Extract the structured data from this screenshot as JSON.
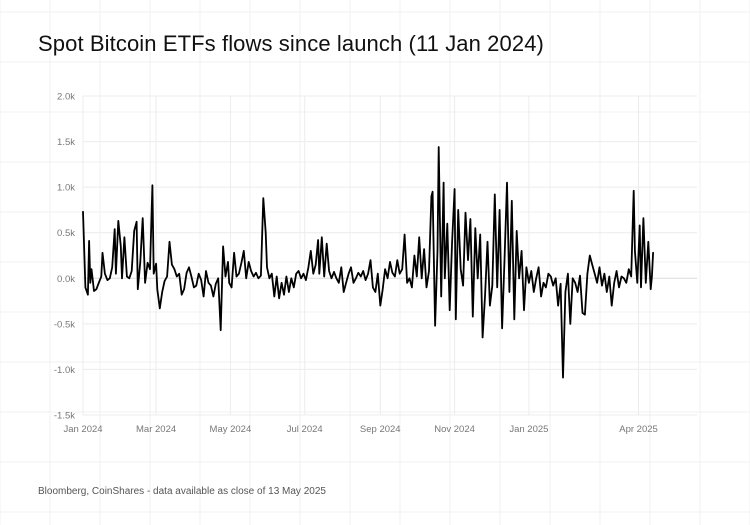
{
  "title": "Spot Bitcoin ETFs flows since launch (11 Jan 2024)",
  "source": "Bloomberg, CoinShares - data available as close of 13 May 2025",
  "chart_data": {
    "type": "line",
    "title": "Spot Bitcoin ETFs flows since launch (11 Jan 2024)",
    "xlabel": "",
    "ylabel": "",
    "xlim": [
      "2024-01-01",
      "2025-05-19"
    ],
    "ylim": [
      -1.5,
      2.0
    ],
    "y_unit": "k",
    "grid": true,
    "legend": "none",
    "line_color": "#000000",
    "y_ticks": [
      {
        "value": 2.0,
        "label": "2.0k"
      },
      {
        "value": 1.5,
        "label": "1.5k"
      },
      {
        "value": 1.0,
        "label": "1.0k"
      },
      {
        "value": 0.5,
        "label": "0.5k"
      },
      {
        "value": 0.0,
        "label": "0.0k"
      },
      {
        "value": -0.5,
        "label": "-0.5k"
      },
      {
        "value": -1.0,
        "label": "-1.0k"
      },
      {
        "value": -1.5,
        "label": "-1.5k"
      }
    ],
    "x_ticks": [
      {
        "date": "2024-01-01",
        "label": "Jan 2024"
      },
      {
        "date": "2024-03-01",
        "label": "Mar 2024"
      },
      {
        "date": "2024-05-01",
        "label": "May 2024"
      },
      {
        "date": "2024-07-01",
        "label": "Jul 2024"
      },
      {
        "date": "2024-09-01",
        "label": "Sep 2024"
      },
      {
        "date": "2024-11-01",
        "label": "Nov 2024"
      },
      {
        "date": "2025-01-01",
        "label": "Jan 2025"
      },
      {
        "date": "2025-04-01",
        "label": "Apr 2025"
      }
    ],
    "series": [
      {
        "values": [
          [
            "2024-01-01",
            0.73
          ],
          [
            "2024-01-03",
            -0.1
          ],
          [
            "2024-01-05",
            -0.18
          ],
          [
            "2024-01-06",
            0.41
          ],
          [
            "2024-01-07",
            -0.05
          ],
          [
            "2024-01-08",
            0.1
          ],
          [
            "2024-01-10",
            -0.14
          ],
          [
            "2024-01-12",
            -0.12
          ],
          [
            "2024-01-14",
            -0.05
          ],
          [
            "2024-01-16",
            0.02
          ],
          [
            "2024-01-17",
            0.28
          ],
          [
            "2024-01-19",
            0.05
          ],
          [
            "2024-01-21",
            -0.02
          ],
          [
            "2024-01-23",
            0.0
          ],
          [
            "2024-01-25",
            0.12
          ],
          [
            "2024-01-27",
            0.54
          ],
          [
            "2024-01-28",
            0.05
          ],
          [
            "2024-01-30",
            0.63
          ],
          [
            "2024-02-01",
            0.35
          ],
          [
            "2024-02-02",
            0.0
          ],
          [
            "2024-02-04",
            0.45
          ],
          [
            "2024-02-06",
            0.02
          ],
          [
            "2024-02-08",
            0.0
          ],
          [
            "2024-02-10",
            0.08
          ],
          [
            "2024-02-12",
            0.52
          ],
          [
            "2024-02-14",
            0.62
          ],
          [
            "2024-02-15",
            -0.12
          ],
          [
            "2024-02-17",
            0.18
          ],
          [
            "2024-02-19",
            0.66
          ],
          [
            "2024-02-21",
            -0.05
          ],
          [
            "2024-02-23",
            0.17
          ],
          [
            "2024-02-25",
            0.1
          ],
          [
            "2024-02-27",
            1.02
          ],
          [
            "2024-02-28",
            0.05
          ],
          [
            "2024-03-01",
            0.16
          ],
          [
            "2024-03-02",
            -0.12
          ],
          [
            "2024-03-04",
            -0.33
          ],
          [
            "2024-03-06",
            -0.15
          ],
          [
            "2024-03-08",
            -0.03
          ],
          [
            "2024-03-10",
            0.02
          ],
          [
            "2024-03-12",
            0.4
          ],
          [
            "2024-03-14",
            0.15
          ],
          [
            "2024-03-16",
            0.1
          ],
          [
            "2024-03-18",
            0.02
          ],
          [
            "2024-03-20",
            0.05
          ],
          [
            "2024-03-22",
            -0.18
          ],
          [
            "2024-03-24",
            -0.12
          ],
          [
            "2024-03-26",
            0.06
          ],
          [
            "2024-03-28",
            0.12
          ],
          [
            "2024-03-30",
            0.02
          ],
          [
            "2024-04-01",
            -0.1
          ],
          [
            "2024-04-03",
            -0.08
          ],
          [
            "2024-04-05",
            0.05
          ],
          [
            "2024-04-07",
            -0.02
          ],
          [
            "2024-04-09",
            -0.2
          ],
          [
            "2024-04-11",
            0.08
          ],
          [
            "2024-04-13",
            -0.05
          ],
          [
            "2024-04-15",
            -0.08
          ],
          [
            "2024-04-17",
            -0.2
          ],
          [
            "2024-04-19",
            -0.06
          ],
          [
            "2024-04-21",
            0.0
          ],
          [
            "2024-04-23",
            -0.57
          ],
          [
            "2024-04-25",
            0.35
          ],
          [
            "2024-04-27",
            0.02
          ],
          [
            "2024-04-29",
            0.18
          ],
          [
            "2024-04-30",
            -0.05
          ],
          [
            "2024-05-02",
            -0.1
          ],
          [
            "2024-05-04",
            0.28
          ],
          [
            "2024-05-06",
            0.02
          ],
          [
            "2024-05-08",
            0.05
          ],
          [
            "2024-05-10",
            0.17
          ],
          [
            "2024-05-12",
            0.3
          ],
          [
            "2024-05-14",
            0.0
          ],
          [
            "2024-05-16",
            0.18
          ],
          [
            "2024-05-18",
            0.08
          ],
          [
            "2024-05-20",
            0.02
          ],
          [
            "2024-05-22",
            0.06
          ],
          [
            "2024-05-24",
            0.0
          ],
          [
            "2024-05-26",
            0.03
          ],
          [
            "2024-05-28",
            0.88
          ],
          [
            "2024-05-30",
            0.5
          ],
          [
            "2024-05-31",
            0.12
          ],
          [
            "2024-06-02",
            0.0
          ],
          [
            "2024-06-04",
            0.05
          ],
          [
            "2024-06-06",
            -0.2
          ],
          [
            "2024-06-08",
            0.02
          ],
          [
            "2024-06-10",
            -0.22
          ],
          [
            "2024-06-12",
            -0.05
          ],
          [
            "2024-06-14",
            -0.18
          ],
          [
            "2024-06-16",
            0.02
          ],
          [
            "2024-06-18",
            -0.15
          ],
          [
            "2024-06-20",
            0.0
          ],
          [
            "2024-06-22",
            -0.1
          ],
          [
            "2024-06-24",
            0.05
          ],
          [
            "2024-06-26",
            0.08
          ],
          [
            "2024-06-28",
            0.0
          ],
          [
            "2024-06-30",
            0.05
          ],
          [
            "2024-07-02",
            -0.02
          ],
          [
            "2024-07-04",
            0.12
          ],
          [
            "2024-07-06",
            0.3
          ],
          [
            "2024-07-08",
            0.05
          ],
          [
            "2024-07-10",
            0.15
          ],
          [
            "2024-07-12",
            0.42
          ],
          [
            "2024-07-13",
            0.05
          ],
          [
            "2024-07-15",
            0.45
          ],
          [
            "2024-07-17",
            0.02
          ],
          [
            "2024-07-19",
            0.38
          ],
          [
            "2024-07-21",
            0.08
          ],
          [
            "2024-07-23",
            0.0
          ],
          [
            "2024-07-25",
            0.07
          ],
          [
            "2024-07-27",
            0.0
          ],
          [
            "2024-07-29",
            -0.05
          ],
          [
            "2024-07-31",
            0.12
          ],
          [
            "2024-08-02",
            -0.15
          ],
          [
            "2024-08-04",
            -0.05
          ],
          [
            "2024-08-06",
            0.05
          ],
          [
            "2024-08-08",
            0.12
          ],
          [
            "2024-08-10",
            -0.05
          ],
          [
            "2024-08-12",
            0.0
          ],
          [
            "2024-08-14",
            0.06
          ],
          [
            "2024-08-16",
            0.02
          ],
          [
            "2024-08-18",
            0.08
          ],
          [
            "2024-08-20",
            -0.02
          ],
          [
            "2024-08-22",
            0.05
          ],
          [
            "2024-08-24",
            0.2
          ],
          [
            "2024-08-26",
            -0.1
          ],
          [
            "2024-08-28",
            -0.15
          ],
          [
            "2024-08-30",
            0.05
          ],
          [
            "2024-09-01",
            -0.3
          ],
          [
            "2024-09-03",
            -0.12
          ],
          [
            "2024-09-05",
            0.1
          ],
          [
            "2024-09-07",
            0.0
          ],
          [
            "2024-09-09",
            0.18
          ],
          [
            "2024-09-11",
            0.06
          ],
          [
            "2024-09-13",
            0.02
          ],
          [
            "2024-09-15",
            0.2
          ],
          [
            "2024-09-17",
            0.05
          ],
          [
            "2024-09-19",
            0.1
          ],
          [
            "2024-09-21",
            0.48
          ],
          [
            "2024-09-23",
            -0.05
          ],
          [
            "2024-09-25",
            0.0
          ],
          [
            "2024-09-27",
            -0.1
          ],
          [
            "2024-09-29",
            0.25
          ],
          [
            "2024-10-01",
            0.02
          ],
          [
            "2024-10-03",
            0.45
          ],
          [
            "2024-10-05",
            0.0
          ],
          [
            "2024-10-07",
            0.32
          ],
          [
            "2024-10-09",
            -0.1
          ],
          [
            "2024-10-11",
            0.08
          ],
          [
            "2024-10-13",
            0.9
          ],
          [
            "2024-10-14",
            0.95
          ],
          [
            "2024-10-16",
            -0.52
          ],
          [
            "2024-10-18",
            0.3
          ],
          [
            "2024-10-19",
            1.44
          ],
          [
            "2024-10-21",
            -0.2
          ],
          [
            "2024-10-23",
            1.05
          ],
          [
            "2024-10-24",
            0.0
          ],
          [
            "2024-10-26",
            0.6
          ],
          [
            "2024-10-28",
            -0.35
          ],
          [
            "2024-10-30",
            0.4
          ],
          [
            "2024-11-01",
            0.98
          ],
          [
            "2024-11-02",
            -0.45
          ],
          [
            "2024-11-04",
            0.75
          ],
          [
            "2024-11-06",
            0.1
          ],
          [
            "2024-11-08",
            -0.08
          ],
          [
            "2024-11-10",
            0.72
          ],
          [
            "2024-11-12",
            0.2
          ],
          [
            "2024-11-14",
            0.65
          ],
          [
            "2024-11-16",
            -0.42
          ],
          [
            "2024-11-18",
            0.55
          ],
          [
            "2024-11-20",
            0.0
          ],
          [
            "2024-11-22",
            0.48
          ],
          [
            "2024-11-24",
            -0.65
          ],
          [
            "2024-11-26",
            -0.2
          ],
          [
            "2024-11-28",
            0.4
          ],
          [
            "2024-11-30",
            -0.3
          ],
          [
            "2024-12-02",
            -0.08
          ],
          [
            "2024-12-04",
            0.92
          ],
          [
            "2024-12-06",
            -0.1
          ],
          [
            "2024-12-08",
            0.75
          ],
          [
            "2024-12-10",
            -0.55
          ],
          [
            "2024-12-12",
            0.2
          ],
          [
            "2024-12-14",
            1.05
          ],
          [
            "2024-12-16",
            -0.15
          ],
          [
            "2024-12-18",
            0.85
          ],
          [
            "2024-12-20",
            -0.45
          ],
          [
            "2024-12-22",
            0.52
          ],
          [
            "2024-12-24",
            0.0
          ],
          [
            "2024-12-26",
            0.3
          ],
          [
            "2024-12-28",
            -0.35
          ],
          [
            "2024-12-30",
            0.12
          ],
          [
            "2025-01-01",
            -0.05
          ],
          [
            "2025-01-03",
            0.08
          ],
          [
            "2025-01-05",
            -0.15
          ],
          [
            "2025-01-07",
            0.0
          ],
          [
            "2025-01-09",
            0.12
          ],
          [
            "2025-01-11",
            -0.2
          ],
          [
            "2025-01-13",
            -0.05
          ],
          [
            "2025-01-15",
            -0.1
          ],
          [
            "2025-01-17",
            0.05
          ],
          [
            "2025-01-19",
            0.02
          ],
          [
            "2025-01-21",
            -0.08
          ],
          [
            "2025-01-23",
            0.0
          ],
          [
            "2025-01-25",
            -0.3
          ],
          [
            "2025-01-27",
            -0.06
          ],
          [
            "2025-01-29",
            -1.09
          ],
          [
            "2025-01-31",
            -0.15
          ],
          [
            "2025-02-02",
            0.05
          ],
          [
            "2025-02-04",
            -0.5
          ],
          [
            "2025-02-06",
            0.0
          ],
          [
            "2025-02-08",
            -0.05
          ],
          [
            "2025-02-10",
            -0.15
          ],
          [
            "2025-02-12",
            0.03
          ],
          [
            "2025-02-14",
            -0.38
          ],
          [
            "2025-02-16",
            -0.4
          ],
          [
            "2025-02-18",
            0.05
          ],
          [
            "2025-02-20",
            0.25
          ],
          [
            "2025-02-22",
            0.15
          ],
          [
            "2025-02-24",
            0.05
          ],
          [
            "2025-02-26",
            -0.05
          ],
          [
            "2025-02-28",
            0.12
          ],
          [
            "2025-03-02",
            -0.08
          ],
          [
            "2025-03-04",
            0.05
          ],
          [
            "2025-03-06",
            -0.15
          ],
          [
            "2025-03-08",
            0.02
          ],
          [
            "2025-03-10",
            -0.3
          ],
          [
            "2025-03-12",
            -0.05
          ],
          [
            "2025-03-14",
            0.08
          ],
          [
            "2025-03-16",
            -0.1
          ],
          [
            "2025-03-18",
            0.02
          ],
          [
            "2025-03-20",
            0.0
          ],
          [
            "2025-03-22",
            -0.05
          ],
          [
            "2025-03-24",
            0.1
          ],
          [
            "2025-03-26",
            0.02
          ],
          [
            "2025-03-28",
            0.96
          ],
          [
            "2025-03-29",
            0.3
          ],
          [
            "2025-03-31",
            -0.05
          ],
          [
            "2025-04-02",
            0.58
          ],
          [
            "2025-04-03",
            -0.1
          ],
          [
            "2025-04-05",
            0.66
          ],
          [
            "2025-04-07",
            -0.05
          ],
          [
            "2025-04-09",
            0.4
          ],
          [
            "2025-04-11",
            -0.12
          ],
          [
            "2025-04-12",
            0.02
          ],
          [
            "2025-04-13",
            0.28
          ]
        ]
      }
    ]
  }
}
